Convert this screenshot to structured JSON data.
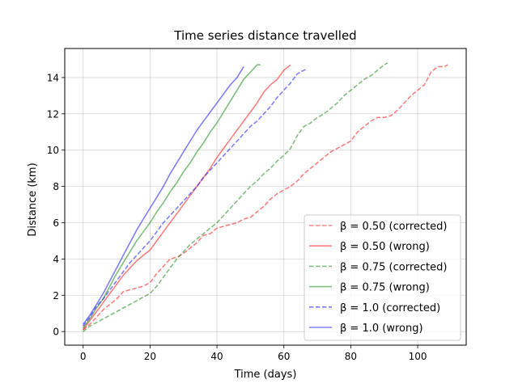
{
  "chart_data": {
    "type": "line",
    "title": "Time series distance travelled",
    "xlabel": "Time (days)",
    "ylabel": "Distance (km)",
    "xlim": [
      -5.5,
      114.5
    ],
    "ylim": [
      -0.75,
      15.6
    ],
    "xticks": [
      0,
      20,
      40,
      60,
      80,
      100
    ],
    "yticks": [
      0,
      2,
      4,
      6,
      8,
      10,
      12,
      14
    ],
    "grid": true,
    "legend_position": "lower-right",
    "series": [
      {
        "name": "β = 0.50 (corrected)",
        "color": "#ff0000",
        "dashed": true,
        "x": [
          0,
          2,
          4,
          6,
          8,
          10,
          12,
          14,
          16,
          18,
          20,
          22,
          24,
          26,
          28,
          30,
          32,
          34,
          36,
          38,
          40,
          42,
          44,
          46,
          48,
          50,
          52,
          54,
          56,
          58,
          60,
          62,
          64,
          66,
          68,
          70,
          72,
          74,
          76,
          78,
          80,
          82,
          84,
          86,
          88,
          90,
          92,
          94,
          96,
          98,
          100,
          102,
          104,
          106,
          108,
          109
        ],
        "y": [
          0.1,
          0.4,
          0.8,
          1.2,
          1.5,
          1.8,
          2.2,
          2.3,
          2.4,
          2.5,
          2.7,
          3.2,
          3.6,
          4.0,
          4.1,
          4.3,
          4.6,
          4.9,
          5.3,
          5.4,
          5.7,
          5.8,
          5.9,
          6.0,
          6.2,
          6.3,
          6.6,
          6.9,
          7.3,
          7.6,
          7.8,
          8.0,
          8.3,
          8.7,
          9.0,
          9.3,
          9.6,
          9.9,
          10.1,
          10.3,
          10.5,
          11.0,
          11.3,
          11.6,
          11.8,
          11.8,
          11.9,
          12.2,
          12.6,
          13.0,
          13.3,
          13.6,
          14.3,
          14.6,
          14.6,
          14.7
        ]
      },
      {
        "name": "β = 0.50 (wrong)",
        "color": "#ff0000",
        "dashed": false,
        "x": [
          0,
          2,
          4,
          6,
          8,
          10,
          12,
          14,
          16,
          18,
          20,
          22,
          24,
          26,
          28,
          30,
          32,
          34,
          36,
          38,
          40,
          42,
          44,
          46,
          48,
          50,
          52,
          54,
          56,
          58,
          60,
          62
        ],
        "y": [
          0.1,
          0.6,
          1.1,
          1.6,
          2.1,
          2.6,
          3.1,
          3.5,
          3.9,
          4.2,
          4.5,
          5.0,
          5.5,
          6.0,
          6.5,
          7.0,
          7.5,
          8.0,
          8.5,
          9.0,
          9.6,
          10.1,
          10.6,
          11.1,
          11.6,
          12.1,
          12.6,
          13.2,
          13.6,
          13.9,
          14.4,
          14.7
        ]
      },
      {
        "name": "β = 0.75 (corrected)",
        "color": "#008000",
        "dashed": true,
        "x": [
          0,
          2,
          4,
          6,
          8,
          10,
          12,
          14,
          16,
          18,
          20,
          22,
          24,
          26,
          28,
          30,
          32,
          34,
          36,
          38,
          40,
          42,
          44,
          46,
          48,
          50,
          52,
          54,
          56,
          58,
          60,
          62,
          64,
          66,
          68,
          70,
          72,
          74,
          76,
          78,
          80,
          82,
          84,
          86,
          88,
          90,
          91
        ],
        "y": [
          0.0,
          0.3,
          0.5,
          0.7,
          0.9,
          1.1,
          1.3,
          1.5,
          1.7,
          1.9,
          2.1,
          2.5,
          3.0,
          3.5,
          4.0,
          4.4,
          4.8,
          5.1,
          5.4,
          5.7,
          6.0,
          6.4,
          6.8,
          7.2,
          7.6,
          8.0,
          8.3,
          8.7,
          9.0,
          9.4,
          9.7,
          10.1,
          10.8,
          11.3,
          11.5,
          11.8,
          12.0,
          12.3,
          12.6,
          13.0,
          13.3,
          13.6,
          13.9,
          14.1,
          14.4,
          14.7,
          14.8
        ]
      },
      {
        "name": "β = 0.75 (wrong)",
        "color": "#008000",
        "dashed": false,
        "x": [
          0,
          2,
          4,
          6,
          8,
          10,
          12,
          14,
          16,
          18,
          20,
          22,
          24,
          26,
          28,
          30,
          32,
          34,
          36,
          38,
          40,
          42,
          44,
          46,
          48,
          50,
          52,
          53
        ],
        "y": [
          0.2,
          0.7,
          1.3,
          1.8,
          2.5,
          3.2,
          3.8,
          4.4,
          5.0,
          5.5,
          6.0,
          6.6,
          7.1,
          7.7,
          8.2,
          8.8,
          9.3,
          9.9,
          10.4,
          11.0,
          11.5,
          12.1,
          12.7,
          13.3,
          13.9,
          14.3,
          14.7,
          14.7
        ]
      },
      {
        "name": "β = 1.0 (corrected)",
        "color": "#0000ff",
        "dashed": true,
        "x": [
          0,
          2,
          4,
          6,
          8,
          10,
          12,
          14,
          16,
          18,
          20,
          22,
          24,
          26,
          28,
          30,
          32,
          34,
          36,
          38,
          40,
          42,
          44,
          46,
          48,
          50,
          52,
          54,
          56,
          58,
          60,
          62,
          64,
          66,
          67
        ],
        "y": [
          0.3,
          0.8,
          1.4,
          1.8,
          2.3,
          2.8,
          3.3,
          3.8,
          4.2,
          4.6,
          5.0,
          5.5,
          6.0,
          6.4,
          6.8,
          7.2,
          7.6,
          8.0,
          8.5,
          8.9,
          9.3,
          9.7,
          10.1,
          10.5,
          10.9,
          11.3,
          11.6,
          12.0,
          12.4,
          12.9,
          13.3,
          13.7,
          14.2,
          14.4,
          14.5
        ]
      },
      {
        "name": "β = 1.0 (wrong)",
        "color": "#0000ff",
        "dashed": false,
        "x": [
          0,
          2,
          4,
          6,
          8,
          10,
          12,
          14,
          16,
          18,
          20,
          22,
          24,
          26,
          28,
          30,
          32,
          34,
          36,
          38,
          40,
          42,
          44,
          46,
          48
        ],
        "y": [
          0.4,
          0.9,
          1.5,
          2.1,
          2.8,
          3.5,
          4.2,
          4.9,
          5.6,
          6.2,
          6.8,
          7.4,
          8.0,
          8.7,
          9.3,
          9.9,
          10.5,
          11.1,
          11.6,
          12.1,
          12.6,
          13.1,
          13.6,
          14.0,
          14.6
        ]
      }
    ]
  }
}
